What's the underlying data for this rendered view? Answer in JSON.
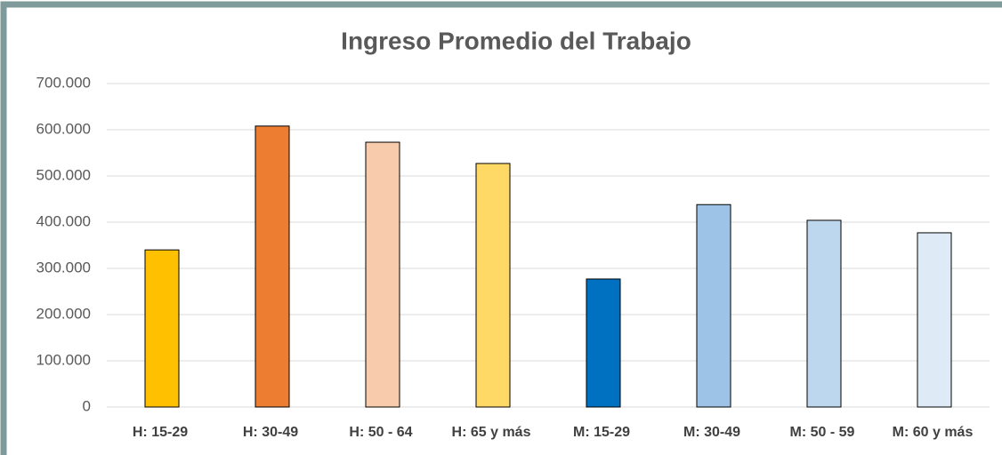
{
  "chart_data": {
    "type": "bar",
    "title": "Ingreso Promedio del Trabajo",
    "categories": [
      "H: 15-29",
      "H: 30-49",
      "H: 50 - 64",
      "H: 65 y más",
      "M: 15-29",
      "M: 30-49",
      "M: 50 - 59",
      "M: 60 y más"
    ],
    "values": [
      340000,
      608000,
      573000,
      527000,
      277000,
      438000,
      404000,
      377000
    ],
    "colors": [
      "#ffc000",
      "#ed7d31",
      "#f8cbad",
      "#ffd966",
      "#0070c0",
      "#9dc3e6",
      "#bdd7ee",
      "#deebf7"
    ],
    "ylim": [
      0,
      700000
    ],
    "yticks": [
      0,
      {
        "value": 100000,
        "label": "100.000"
      },
      {
        "value": 200000,
        "label": "200.000"
      },
      {
        "value": 300000,
        "label": "300.000"
      },
      {
        "value": 400000,
        "label": "400.000"
      },
      {
        "value": 500000,
        "label": "500.000"
      },
      {
        "value": 600000,
        "label": "600.000"
      },
      {
        "value": 700000,
        "label": "700.000"
      }
    ],
    "grid": true
  }
}
